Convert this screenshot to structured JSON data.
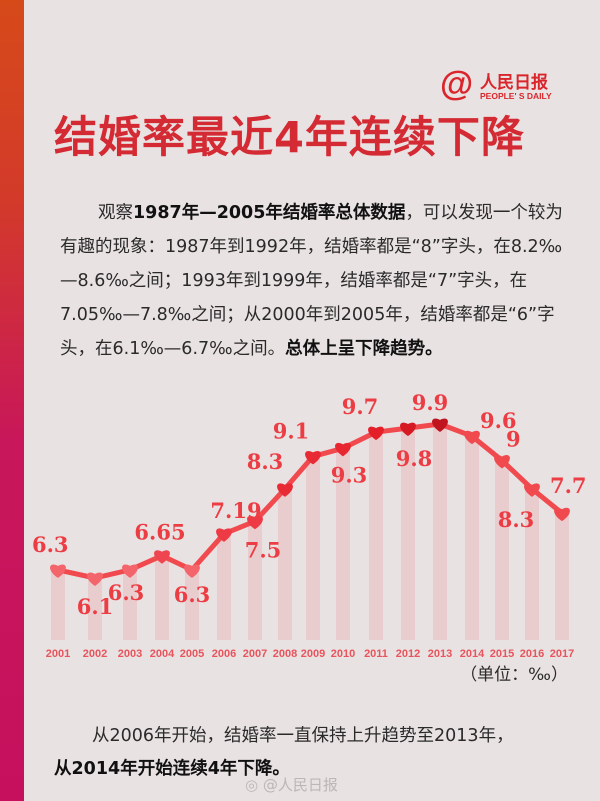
{
  "logo": {
    "at_symbol": "@",
    "name_cn": "人民日报",
    "name_en": "PEOPLE' S DAILY"
  },
  "title": "结婚率最近4年连续下降",
  "intro": {
    "lead": "观察",
    "bold1": "1987年—2005年结婚率总体数据",
    "text1": "，可以发现一个较为有趣的现象：1987年到1992年，结婚率都是“8”字头，在8.2‰—8.6‰之间；1993年到1999年，结婚率都是“7”字头，在7.05‰—7.8‰之间；从2000年到2005年，结婚率都是“6”字头，在6.1‰—6.7‰之间。",
    "bold2": "总体上呈下降趋势。"
  },
  "unit_label": "（单位：‰）",
  "conclusion": {
    "text": "从2006年开始，结婚率一直保持上升趋势至2013年，",
    "bold": "从2014年开始连续4年下降。"
  },
  "watermark": "@人民日报",
  "colors": {
    "accent": "#d42a33",
    "line": "#f04a4f",
    "bar": "#e9c8c9",
    "background": "#e9e2e2",
    "sidebar_top": "#d64a1a",
    "sidebar_bottom": "#c6105e"
  },
  "chart_data": {
    "type": "line",
    "title": "结婚率最近4年连续下降",
    "xlabel": "",
    "ylabel": "",
    "unit": "‰",
    "categories": [
      "2001",
      "2002",
      "2003",
      "2004",
      "2005",
      "2006",
      "2007",
      "2008",
      "2009",
      "2010",
      "2011",
      "2012",
      "2013",
      "2014",
      "2015",
      "2016",
      "2017"
    ],
    "series": [
      {
        "name": "结婚率",
        "values": [
          6.3,
          6.1,
          6.3,
          6.65,
          6.3,
          7.19,
          7.5,
          8.3,
          9.1,
          9.3,
          9.7,
          9.8,
          9.9,
          9.6,
          9,
          8.3,
          7.7
        ],
        "labels": [
          "6.3",
          "6.1",
          "6.3",
          "6.65",
          "6.3",
          "7.19",
          "7.5",
          "8.3",
          "9.1",
          "9.3",
          "9.7",
          "9.8",
          "9.9",
          "9.6",
          "9",
          "8.3",
          "7.7"
        ]
      }
    ],
    "marker": "heart",
    "background_bars": true,
    "grid": false,
    "legend": "none"
  }
}
